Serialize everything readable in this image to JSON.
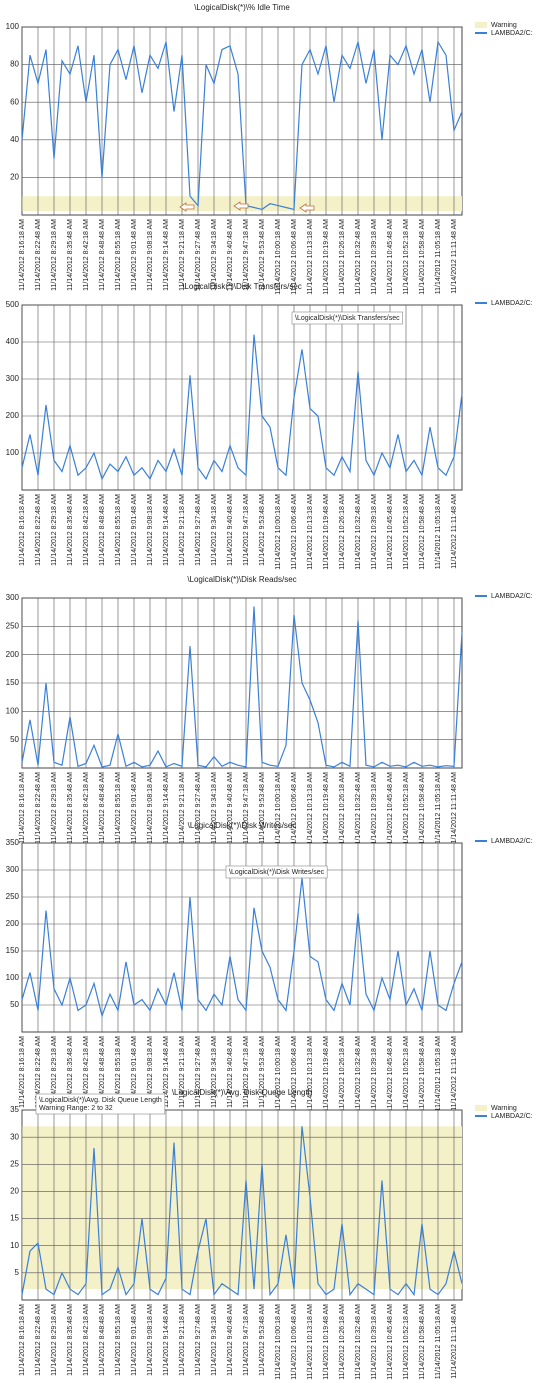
{
  "chart_data": [
    {
      "type": "line",
      "title": "\\LogicalDisk(*)\\% Idle Time",
      "categories": [
        "11/14/2012 8:16:18 AM",
        null,
        "11/14/2012 8:22:48 AM",
        null,
        "11/14/2012 8:29:18 AM",
        null,
        "11/14/2012 8:35:48 AM",
        null,
        "11/14/2012 8:42:18 AM",
        null,
        "11/14/2012 8:48:48 AM",
        null,
        "11/14/2012 8:55:18 AM",
        null,
        "11/14/2012 9:01:48 AM",
        null,
        "11/14/2012 9:08:18 AM",
        null,
        "11/14/2012 9:14:48 AM",
        null,
        "11/14/2012 9:21:18 AM",
        null,
        "11/14/2012 9:27:48 AM",
        null,
        "11/14/2012 9:34:18 AM",
        null,
        "11/14/2012 9:40:48 AM",
        null,
        "11/14/2012 9:47:18 AM",
        null,
        "11/14/2012 9:53:48 AM",
        null,
        "11/14/2012 10:00:18 AM",
        null,
        "11/14/2012 10:06:48 AM",
        null,
        "11/14/2012 10:13:18 AM",
        null,
        "11/14/2012 10:19:48 AM",
        null,
        "11/14/2012 10:26:18 AM",
        null,
        "11/14/2012 10:32:48 AM",
        null,
        "11/14/2012 10:39:18 AM",
        null,
        "11/14/2012 10:45:48 AM",
        null,
        "11/14/2012 10:52:18 AM",
        null,
        "11/14/2012 10:58:48 AM",
        null,
        "11/14/2012 11:05:18 AM",
        null,
        "11/14/2012 11:11:48 AM",
        null
      ],
      "series": [
        {
          "name": "LAMBDA2/C:",
          "color": "#3a80d8",
          "values": [
            40,
            85,
            70,
            88,
            30,
            82,
            75,
            90,
            60,
            85,
            20,
            80,
            88,
            72,
            90,
            65,
            85,
            78,
            92,
            55,
            85,
            10,
            5,
            80,
            70,
            88,
            90,
            75,
            5,
            4,
            3,
            6,
            5,
            4,
            3,
            80,
            88,
            75,
            90,
            60,
            85,
            78,
            92,
            70,
            88,
            40,
            85,
            80,
            90,
            75,
            88,
            60,
            92,
            85,
            45,
            55
          ]
        }
      ],
      "warning": {
        "name": "Warning",
        "range": [
          2,
          10
        ],
        "color": "#f4f0c8"
      },
      "ylim": [
        0,
        100
      ],
      "yticks": [
        20,
        40,
        60,
        80,
        100
      ],
      "grid": true
    },
    {
      "type": "line",
      "title": "\\LogicalDisk(*)\\Disk Transfers/sec",
      "annotation": [
        "\\LogicalDisk(*)\\Disk Transfers/sec"
      ],
      "categories": [
        "11/14/2012 8:16:18 AM",
        null,
        "11/14/2012 8:22:48 AM",
        null,
        "11/14/2012 8:29:18 AM",
        null,
        "11/14/2012 8:35:48 AM",
        null,
        "11/14/2012 8:42:18 AM",
        null,
        "11/14/2012 8:48:48 AM",
        null,
        "11/14/2012 8:55:18 AM",
        null,
        "11/14/2012 9:01:48 AM",
        null,
        "11/14/2012 9:08:18 AM",
        null,
        "11/14/2012 9:14:48 AM",
        null,
        "11/14/2012 9:21:18 AM",
        null,
        "11/14/2012 9:27:48 AM",
        null,
        "11/14/2012 9:34:18 AM",
        null,
        "11/14/2012 9:40:48 AM",
        null,
        "11/14/2012 9:47:18 AM",
        null,
        "11/14/2012 9:53:48 AM",
        null,
        "11/14/2012 10:00:18 AM",
        null,
        "11/14/2012 10:06:48 AM",
        null,
        "11/14/2012 10:13:18 AM",
        null,
        "11/14/2012 10:19:48 AM",
        null,
        "11/14/2012 10:26:18 AM",
        null,
        "11/14/2012 10:32:48 AM",
        null,
        "11/14/2012 10:39:18 AM",
        null,
        "11/14/2012 10:45:48 AM",
        null,
        "11/14/2012 10:52:18 AM",
        null,
        "11/14/2012 10:58:48 AM",
        null,
        "11/14/2012 11:05:18 AM",
        null,
        "11/14/2012 11:11:48 AM",
        null
      ],
      "series": [
        {
          "name": "LAMBDA2/C:",
          "color": "#3a80d8",
          "values": [
            60,
            150,
            40,
            230,
            80,
            50,
            120,
            40,
            60,
            100,
            30,
            70,
            50,
            90,
            40,
            60,
            30,
            80,
            50,
            110,
            40,
            310,
            60,
            30,
            80,
            50,
            120,
            60,
            40,
            420,
            200,
            170,
            60,
            40,
            250,
            380,
            220,
            200,
            60,
            40,
            90,
            50,
            320,
            80,
            40,
            100,
            60,
            150,
            50,
            80,
            40,
            170,
            60,
            40,
            90,
            260
          ]
        }
      ],
      "ylim": [
        0,
        500
      ],
      "yticks": [
        100,
        200,
        300,
        400,
        500
      ],
      "grid": true
    },
    {
      "type": "line",
      "title": "\\LogicalDisk(*)\\Disk Reads/sec",
      "categories": [
        "11/14/2012 8:16:18 AM",
        null,
        "11/14/2012 8:22:48 AM",
        null,
        "11/14/2012 8:29:18 AM",
        null,
        "11/14/2012 8:35:48 AM",
        null,
        "11/14/2012 8:42:18 AM",
        null,
        "11/14/2012 8:48:48 AM",
        null,
        "11/14/2012 8:55:18 AM",
        null,
        "11/14/2012 9:01:48 AM",
        null,
        "11/14/2012 9:08:18 AM",
        null,
        "11/14/2012 9:14:48 AM",
        null,
        "11/14/2012 9:21:18 AM",
        null,
        "11/14/2012 9:27:48 AM",
        null,
        "11/14/2012 9:34:18 AM",
        null,
        "11/14/2012 9:40:48 AM",
        null,
        "11/14/2012 9:47:18 AM",
        null,
        "11/14/2012 9:53:48 AM",
        null,
        "11/14/2012 10:00:18 AM",
        null,
        "11/14/2012 10:06:48 AM",
        null,
        "11/14/2012 10:13:18 AM",
        null,
        "11/14/2012 10:19:48 AM",
        null,
        "11/14/2012 10:26:18 AM",
        null,
        "11/14/2012 10:32:48 AM",
        null,
        "11/14/2012 10:39:18 AM",
        null,
        "11/14/2012 10:45:48 AM",
        null,
        "11/14/2012 10:52:18 AM",
        null,
        "11/14/2012 10:58:48 AM",
        null,
        "11/14/2012 11:05:18 AM",
        null,
        "11/14/2012 11:11:48 AM",
        null
      ],
      "series": [
        {
          "name": "LAMBDA2/C:",
          "color": "#3a80d8",
          "values": [
            10,
            85,
            5,
            150,
            10,
            5,
            90,
            3,
            8,
            40,
            2,
            5,
            60,
            3,
            10,
            2,
            5,
            30,
            2,
            8,
            3,
            215,
            5,
            2,
            20,
            3,
            10,
            5,
            2,
            285,
            10,
            5,
            3,
            40,
            270,
            150,
            120,
            80,
            5,
            2,
            10,
            3,
            260,
            5,
            2,
            10,
            3,
            5,
            2,
            10,
            3,
            5,
            2,
            4,
            3,
            240
          ]
        }
      ],
      "ylim": [
        0,
        300
      ],
      "yticks": [
        50,
        100,
        150,
        200,
        250,
        300
      ],
      "grid": true
    },
    {
      "type": "line",
      "title": "\\LogicalDisk(*)\\Disk Writes/sec",
      "annotation": [
        "\\LogicalDisk(*)\\Disk Writes/sec"
      ],
      "categories": [
        "11/14/2012 8:16:18 AM",
        null,
        "11/14/2012 8:22:48 AM",
        null,
        "11/14/2012 8:29:18 AM",
        null,
        "11/14/2012 8:35:48 AM",
        null,
        "11/14/2012 8:42:18 AM",
        null,
        "11/14/2012 8:48:48 AM",
        null,
        "11/14/2012 8:55:18 AM",
        null,
        "11/14/2012 9:01:48 AM",
        null,
        "11/14/2012 9:08:18 AM",
        null,
        "11/14/2012 9:14:48 AM",
        null,
        "11/14/2012 9:21:18 AM",
        null,
        "11/14/2012 9:27:48 AM",
        null,
        "11/14/2012 9:34:18 AM",
        null,
        "11/14/2012 9:40:48 AM",
        null,
        "11/14/2012 9:47:18 AM",
        null,
        "11/14/2012 9:53:48 AM",
        null,
        "11/14/2012 10:00:18 AM",
        null,
        "11/14/2012 10:06:48 AM",
        null,
        "11/14/2012 10:13:18 AM",
        null,
        "11/14/2012 10:19:48 AM",
        null,
        "11/14/2012 10:26:18 AM",
        null,
        "11/14/2012 10:32:48 AM",
        null,
        "11/14/2012 10:39:18 AM",
        null,
        "11/14/2012 10:45:48 AM",
        null,
        "11/14/2012 10:52:18 AM",
        null,
        "11/14/2012 10:58:48 AM",
        null,
        "11/14/2012 11:05:18 AM",
        null,
        "11/14/2012 11:11:48 AM",
        null
      ],
      "series": [
        {
          "name": "LAMBDA2/C:",
          "color": "#3a80d8",
          "values": [
            60,
            110,
            40,
            225,
            80,
            50,
            100,
            40,
            50,
            90,
            30,
            70,
            40,
            130,
            50,
            60,
            40,
            80,
            50,
            110,
            40,
            250,
            60,
            40,
            70,
            50,
            140,
            60,
            40,
            230,
            150,
            120,
            60,
            40,
            150,
            285,
            140,
            130,
            60,
            40,
            90,
            50,
            220,
            70,
            40,
            100,
            60,
            150,
            50,
            80,
            40,
            150,
            50,
            40,
            90,
            130
          ]
        }
      ],
      "ylim": [
        0,
        350
      ],
      "yticks": [
        50,
        100,
        150,
        200,
        250,
        300,
        350
      ],
      "grid": true
    },
    {
      "type": "line",
      "title": "\\LogicalDisk(*)\\Avg. Disk Queue Length",
      "annotation": [
        "\\LogicalDisk(*)\\Avg. Disk Queue Length",
        "Warning Range: 2 to 32"
      ],
      "categories": [
        "11/14/2012 8:16:18 AM",
        null,
        "11/14/2012 8:22:48 AM",
        null,
        "11/14/2012 8:29:18 AM",
        null,
        "11/14/2012 8:35:48 AM",
        null,
        "11/14/2012 8:42:18 AM",
        null,
        "11/14/2012 8:48:48 AM",
        null,
        "11/14/2012 8:55:18 AM",
        null,
        "11/14/2012 9:01:48 AM",
        null,
        "11/14/2012 9:08:18 AM",
        null,
        "11/14/2012 9:14:48 AM",
        null,
        "11/14/2012 9:21:18 AM",
        null,
        "11/14/2012 9:27:48 AM",
        null,
        "11/14/2012 9:34:18 AM",
        null,
        "11/14/2012 9:40:48 AM",
        null,
        "11/14/2012 9:47:18 AM",
        null,
        "11/14/2012 9:53:48 AM",
        null,
        "11/14/2012 10:00:18 AM",
        null,
        "11/14/2012 10:06:48 AM",
        null,
        "11/14/2012 10:13:18 AM",
        null,
        "11/14/2012 10:19:48 AM",
        null,
        "11/14/2012 10:26:18 AM",
        null,
        "11/14/2012 10:32:48 AM",
        null,
        "11/14/2012 10:39:18 AM",
        null,
        "11/14/2012 10:45:48 AM",
        null,
        "11/14/2012 10:52:18 AM",
        null,
        "11/14/2012 10:58:48 AM",
        null,
        "11/14/2012 11:05:18 AM",
        null,
        "11/14/2012 11:11:48 AM",
        null
      ],
      "series": [
        {
          "name": "LAMBDA2/C:",
          "color": "#3a80d8",
          "values": [
            1,
            9,
            10.5,
            2,
            1,
            5,
            2,
            1,
            3,
            28,
            1,
            2,
            6,
            1,
            3,
            15,
            2,
            1,
            4,
            29,
            2,
            1,
            9,
            15,
            1,
            3,
            2,
            1,
            22,
            2,
            25,
            1,
            3,
            12,
            2,
            32,
            19,
            3,
            1,
            2,
            14,
            1,
            3,
            2,
            1,
            22,
            2,
            1,
            3,
            1,
            14,
            2,
            1,
            3,
            9,
            3
          ]
        }
      ],
      "warning": {
        "name": "Warning",
        "range": [
          2,
          32
        ],
        "color": "#f4f0c8"
      },
      "ylim": [
        0,
        35
      ],
      "yticks": [
        5,
        10,
        15,
        20,
        25,
        30,
        35
      ],
      "grid": true
    }
  ]
}
